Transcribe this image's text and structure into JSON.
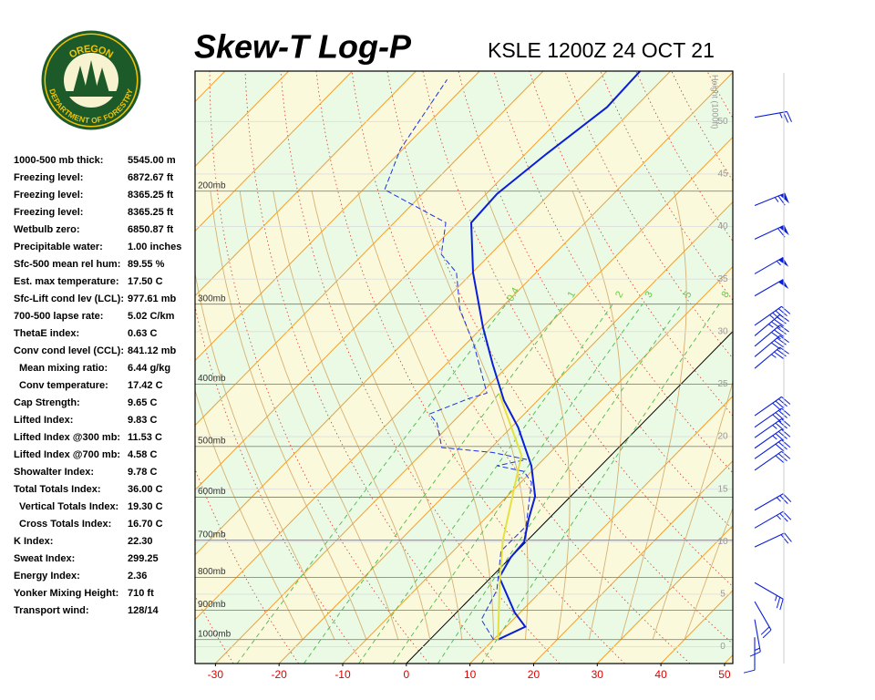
{
  "logo": {
    "top": "OREGON",
    "bottom": "DEPARTMENT OF FORESTRY"
  },
  "indices": [
    {
      "label": "1000-500 mb thick:",
      "value": "5545.00 m"
    },
    {
      "label": "Freezing level:",
      "value": "6872.67 ft"
    },
    {
      "label": "Freezing level:",
      "value": "8365.25 ft"
    },
    {
      "label": "Freezing level:",
      "value": "8365.25 ft"
    },
    {
      "label": "Wetbulb zero:",
      "value": "6850.87 ft"
    },
    {
      "label": "Precipitable water:",
      "value": "1.00 inches"
    },
    {
      "label": "Sfc-500 mean rel hum:",
      "value": "89.55 %"
    },
    {
      "label": "Est. max temperature:",
      "value": "17.50 C"
    },
    {
      "label": "Sfc-Lift cond lev (LCL):",
      "value": "977.61 mb"
    },
    {
      "label": "700-500 lapse rate:",
      "value": "5.02 C/km"
    },
    {
      "label": "ThetaE index:",
      "value": "0.63 C"
    },
    {
      "label": "Conv cond level (CCL):",
      "value": "841.12 mb",
      "sub": [
        {
          "label": "Mean mixing ratio:",
          "value": "6.44 g/kg"
        },
        {
          "label": "Conv temperature:",
          "value": "17.42 C"
        }
      ]
    },
    {
      "label": "Cap Strength:",
      "value": "9.65 C"
    },
    {
      "label": "Lifted Index:",
      "value": "9.83 C"
    },
    {
      "label": "Lifted Index @300 mb:",
      "value": "11.53 C"
    },
    {
      "label": "Lifted Index @700 mb:",
      "value": "4.58 C"
    },
    {
      "label": "Showalter Index:",
      "value": "9.78 C"
    },
    {
      "label": "Total Totals Index:",
      "value": "36.00 C",
      "sub": [
        {
          "label": "Vertical Totals Index:",
          "value": "19.30 C"
        },
        {
          "label": "Cross Totals Index:",
          "value": "16.70 C"
        }
      ]
    },
    {
      "label": "K Index:",
      "value": "22.30"
    },
    {
      "label": "Sweat Index:",
      "value": "299.25"
    },
    {
      "label": "Energy Index:",
      "value": "2.36"
    },
    {
      "label": "Yonker Mixing Height:",
      "value": "710 ft"
    },
    {
      "label": "Transport wind:",
      "value": "128/14"
    }
  ],
  "chart_data": {
    "type": "skewt",
    "title": "Skew-T Log-P",
    "subtitle": "KSLE 1200Z 24 OCT 21",
    "xlim": [
      -33.2,
      51.3
    ],
    "xticks": [
      -30,
      -20,
      -10,
      0,
      10,
      20,
      30,
      40,
      50
    ],
    "ylim": [
      1090,
      130
    ],
    "ylog": true,
    "yticks": [
      {
        "value": 200,
        "label": "200mb"
      },
      {
        "value": 300,
        "label": "300mb"
      },
      {
        "value": 400,
        "label": "400mb"
      },
      {
        "value": 500,
        "label": "500mb"
      },
      {
        "value": 600,
        "label": "600mb"
      },
      {
        "value": 700,
        "label": "700mb"
      },
      {
        "value": 800,
        "label": "800mb"
      },
      {
        "value": 900,
        "label": "900mb"
      },
      {
        "value": 1000,
        "label": "1000mb"
      }
    ],
    "y2label": "Height (1000ft)",
    "y2lim": [
      -1.6,
      54.8
    ],
    "y2ticks": [
      0,
      5,
      10,
      15,
      20,
      25,
      30,
      35,
      40,
      45,
      50
    ],
    "mixing_ratios": [
      {
        "value": 0.4,
        "label": "0.4"
      },
      1,
      2,
      3,
      5,
      8
    ],
    "series": [
      {
        "color": "#0a1ed8",
        "style": "solid",
        "pressure": [
          1000,
          955,
          907,
          800,
          745,
          704,
          649,
          598,
          536,
          467,
          424,
          372,
          326,
          268,
          224,
          202,
          175,
          148,
          129
        ],
        "values": [
          10.7,
          13.0,
          9.1,
          1.3,
          0.0,
          -0.3,
          -3.1,
          -5.6,
          -10.9,
          -18.9,
          -25.3,
          -32.7,
          -39.9,
          -49.9,
          -57.9,
          -58.3,
          -56.7,
          -54.4,
          -54.8
        ]
      },
      {
        "color": "#1f2fe0",
        "style": "dashed",
        "pressure": [
          1000,
          931,
          838,
          728,
          666,
          569,
          547,
          536,
          524,
          511,
          502,
          460,
          445,
          421,
          413,
          348,
          305,
          268,
          251,
          224,
          199,
          172,
          134
        ],
        "values": [
          10.0,
          5.0,
          2.9,
          -2.5,
          -2.4,
          -8.3,
          -11.2,
          -16.3,
          -12.6,
          -19.1,
          -27.8,
          -32.3,
          -34.9,
          -31.1,
          -29.1,
          -38.5,
          -46.4,
          -52.5,
          -57.7,
          -61.9,
          -76.6,
          -80.4,
          -83.8
        ]
      },
      {
        "color": "#e6e040",
        "style": "solid",
        "pressure": [
          1000,
          816,
          700,
          516,
          413
        ],
        "values": [
          10.7,
          2.2,
          -3.9,
          -14.1,
          -27.2
        ]
      }
    ],
    "winds": {
      "color": "#0a1ed8",
      "height": [
        50.4,
        42.0,
        38.8,
        35.5,
        33.4,
        30.6,
        29.6,
        28.6,
        27.6,
        26.5,
        22.0,
        20.9,
        19.9,
        18.9,
        17.9,
        16.8,
        13.0,
        11.3,
        9.5,
        6.1,
        4.3,
        2.6,
        0.9
      ],
      "direction": [
        80,
        68,
        65,
        60,
        60,
        55,
        50,
        50,
        50,
        50,
        55,
        55,
        55,
        55,
        55,
        55,
        60,
        60,
        65,
        120,
        150,
        170,
        180
      ],
      "speed": [
        25,
        65,
        60,
        55,
        50,
        45,
        45,
        40,
        40,
        35,
        40,
        40,
        35,
        35,
        30,
        30,
        25,
        25,
        20,
        25,
        20,
        15,
        10
      ]
    }
  }
}
